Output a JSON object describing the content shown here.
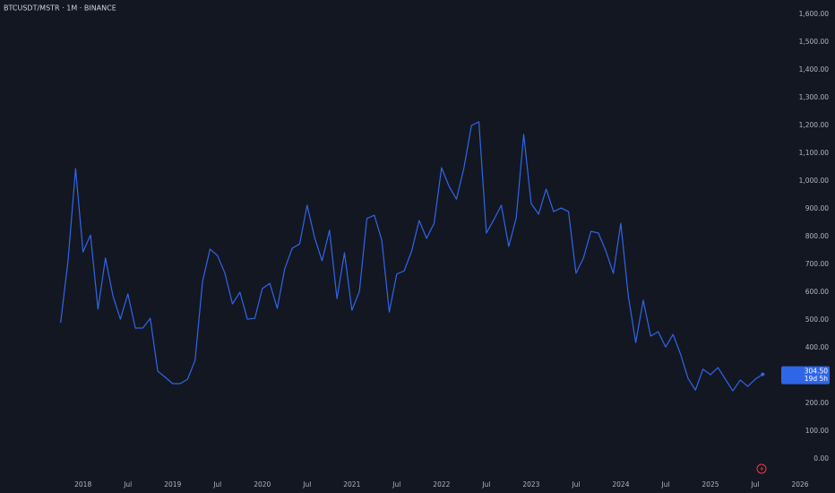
{
  "chart_data": {
    "type": "line",
    "title": "BTCUSDT/MSTR · 1M · BINANCE",
    "x": [
      "2017-10",
      "2017-11",
      "2017-12",
      "2018-01",
      "2018-02",
      "2018-03",
      "2018-04",
      "2018-05",
      "2018-06",
      "2018-07",
      "2018-08",
      "2018-09",
      "2018-10",
      "2018-11",
      "2018-12",
      "2019-01",
      "2019-02",
      "2019-03",
      "2019-04",
      "2019-05",
      "2019-06",
      "2019-07",
      "2019-08",
      "2019-09",
      "2019-10",
      "2019-11",
      "2019-12",
      "2020-01",
      "2020-02",
      "2020-03",
      "2020-04",
      "2020-05",
      "2020-06",
      "2020-07",
      "2020-08",
      "2020-09",
      "2020-10",
      "2020-11",
      "2020-12",
      "2021-01",
      "2021-02",
      "2021-03",
      "2021-04",
      "2021-05",
      "2021-06",
      "2021-07",
      "2021-08",
      "2021-09",
      "2021-10",
      "2021-11",
      "2021-12",
      "2022-01",
      "2022-02",
      "2022-03",
      "2022-04",
      "2022-05",
      "2022-06",
      "2022-07",
      "2022-08",
      "2022-09",
      "2022-10",
      "2022-11",
      "2022-12",
      "2023-01",
      "2023-02",
      "2023-03",
      "2023-04",
      "2023-05",
      "2023-06",
      "2023-07",
      "2023-08",
      "2023-09",
      "2023-10",
      "2023-11",
      "2023-12",
      "2024-01",
      "2024-02",
      "2024-03",
      "2024-04",
      "2024-05",
      "2024-06",
      "2024-07",
      "2024-08",
      "2024-09",
      "2024-10",
      "2024-11",
      "2024-12",
      "2025-01",
      "2025-02",
      "2025-03",
      "2025-04",
      "2025-05",
      "2025-06",
      "2025-07",
      "2025-08"
    ],
    "values": [
      490,
      716,
      1045,
      745,
      806,
      539,
      723,
      587,
      503,
      594,
      471,
      471,
      506,
      316,
      294,
      271,
      271,
      287,
      355,
      639,
      755,
      732,
      668,
      558,
      600,
      503,
      506,
      613,
      632,
      542,
      684,
      758,
      774,
      913,
      797,
      713,
      823,
      577,
      742,
      535,
      603,
      865,
      877,
      787,
      529,
      665,
      677,
      748,
      858,
      794,
      848,
      1048,
      981,
      935,
      1048,
      1200,
      1213,
      813,
      861,
      913,
      765,
      868,
      1168,
      919,
      881,
      971,
      890,
      903,
      890,
      668,
      723,
      819,
      813,
      748,
      668,
      848,
      587,
      419,
      571,
      442,
      458,
      403,
      448,
      377,
      290,
      248,
      323,
      303,
      329,
      287,
      245,
      284,
      261,
      287,
      304.5
    ],
    "color": "#2f66e8",
    "price_tag": {
      "label": "304.50",
      "countdown": "19d 5h"
    },
    "xlim": [
      "2017-02",
      "2026-01"
    ],
    "xticks": [
      {
        "value": "2018-01",
        "label": "2018"
      },
      {
        "value": "2018-07",
        "label": "Jul"
      },
      {
        "value": "2019-01",
        "label": "2019"
      },
      {
        "value": "2019-07",
        "label": "Jul"
      },
      {
        "value": "2020-01",
        "label": "2020"
      },
      {
        "value": "2020-07",
        "label": "Jul"
      },
      {
        "value": "2021-01",
        "label": "2021"
      },
      {
        "value": "2021-07",
        "label": "Jul"
      },
      {
        "value": "2022-01",
        "label": "2022"
      },
      {
        "value": "2022-07",
        "label": "Jul"
      },
      {
        "value": "2023-01",
        "label": "2023"
      },
      {
        "value": "2023-07",
        "label": "Jul"
      },
      {
        "value": "2024-01",
        "label": "2024"
      },
      {
        "value": "2024-07",
        "label": "Jul"
      },
      {
        "value": "2025-01",
        "label": "2025"
      },
      {
        "value": "2025-07",
        "label": "Jul"
      },
      {
        "value": "2026-01",
        "label": "2026"
      }
    ],
    "ylim": [
      0,
      1600
    ],
    "yticks": [
      {
        "value": 0,
        "label": "0.00"
      },
      {
        "value": 100,
        "label": "100.00"
      },
      {
        "value": 200,
        "label": "200.00"
      },
      {
        "value": 400,
        "label": "400.00"
      },
      {
        "value": 500,
        "label": "500.00"
      },
      {
        "value": 600,
        "label": "600.00"
      },
      {
        "value": 700,
        "label": "700.00"
      },
      {
        "value": 800,
        "label": "800.00"
      },
      {
        "value": 900,
        "label": "900.00"
      },
      {
        "value": 1000,
        "label": "1,000.00"
      },
      {
        "value": 1100,
        "label": "1,100.00"
      },
      {
        "value": 1200,
        "label": "1,200.00"
      },
      {
        "value": 1300,
        "label": "1,300.00"
      },
      {
        "value": 1400,
        "label": "1,400.00"
      },
      {
        "value": 1500,
        "label": "1,500.00"
      },
      {
        "value": 1600,
        "label": "1,600.00"
      }
    ],
    "grid": false
  }
}
